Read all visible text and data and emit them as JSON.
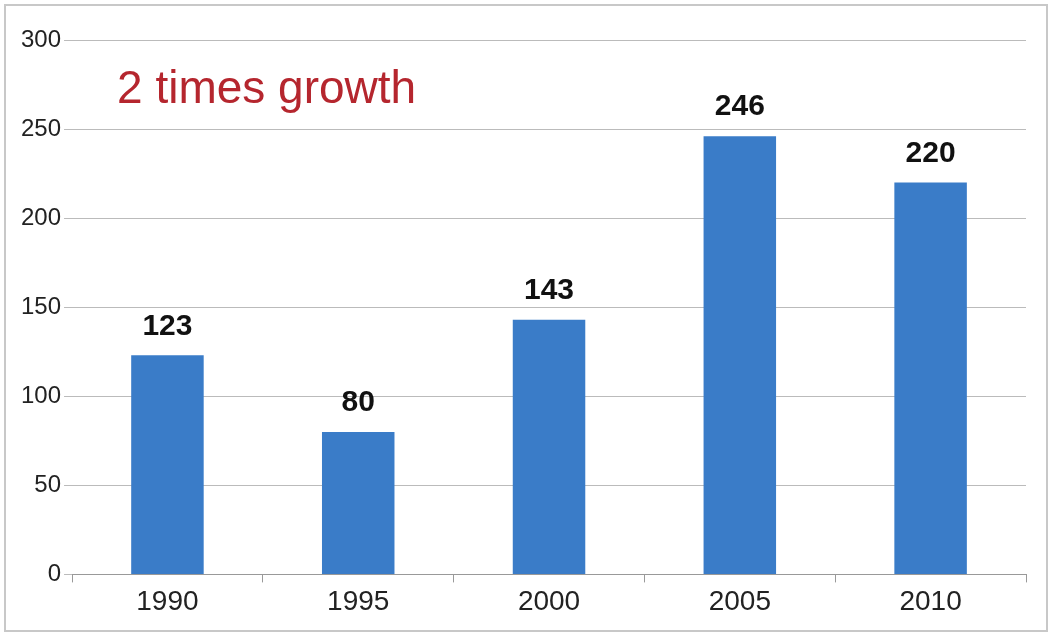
{
  "chart_data": {
    "type": "bar",
    "annotations": [
      "2 times growth"
    ],
    "categories": [
      "1990",
      "1995",
      "2000",
      "2005",
      "2010"
    ],
    "values": [
      123,
      80,
      143,
      246,
      220
    ],
    "color": "#3a7cc8",
    "ylim": [
      0,
      300
    ],
    "yticks": [
      0,
      50,
      100,
      150,
      200,
      250,
      300
    ],
    "grid": "y",
    "data_labels": true,
    "legend": false
  }
}
